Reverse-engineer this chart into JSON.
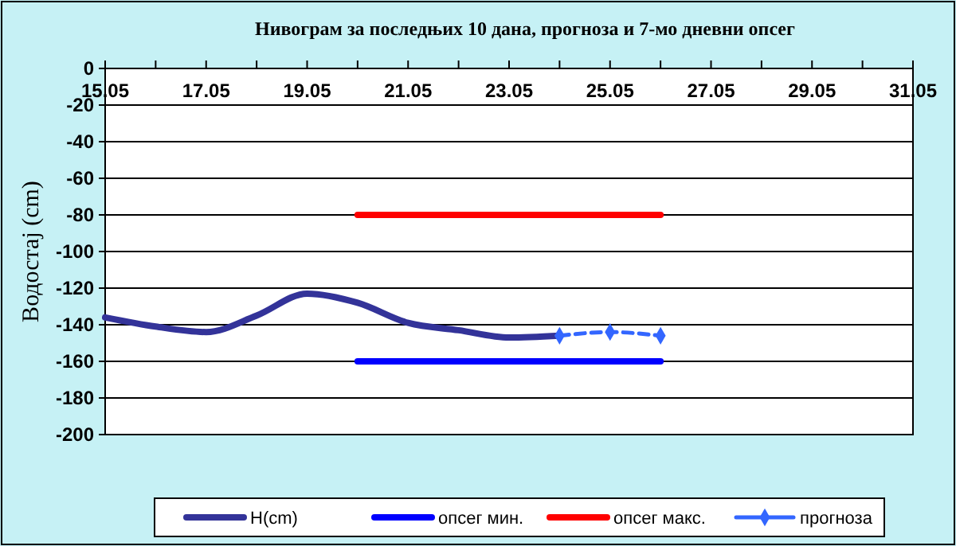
{
  "chart_data": {
    "type": "line",
    "title": "Нивограм за последњих 10 дана, прогноза и 7-мо дневни опсег",
    "ylabel": "Водостај (cm)",
    "xlim": [
      "--05-15",
      "--05-31"
    ],
    "xticks": [
      {
        "value": "--05-15",
        "label": "15.05"
      },
      {
        "value": "--05-16",
        "label": null
      },
      {
        "value": "--05-17",
        "label": "17.05"
      },
      {
        "value": "--05-18",
        "label": null
      },
      {
        "value": "--05-19",
        "label": "19.05"
      },
      {
        "value": "--05-20",
        "label": null
      },
      {
        "value": "--05-21",
        "label": "21.05"
      },
      {
        "value": "--05-22",
        "label": null
      },
      {
        "value": "--05-23",
        "label": "23.05"
      },
      {
        "value": "--05-24",
        "label": null
      },
      {
        "value": "--05-25",
        "label": "25.05"
      },
      {
        "value": "--05-26",
        "label": null
      },
      {
        "value": "--05-27",
        "label": "27.05"
      },
      {
        "value": "--05-28",
        "label": null
      },
      {
        "value": "--05-29",
        "label": "29.05"
      },
      {
        "value": "--05-30",
        "label": null
      },
      {
        "value": "--05-31",
        "label": "31.05"
      }
    ],
    "ylim": [
      -200,
      0
    ],
    "yticks": [
      0,
      -20,
      -40,
      -60,
      -80,
      -100,
      -120,
      -140,
      -160,
      -180,
      -200
    ],
    "grid": "y",
    "legend": "bottom",
    "series": [
      {
        "name": "H(cm)",
        "color": "#333399",
        "x": [
          "--05-15",
          "--05-16",
          "--05-17",
          "--05-18",
          "--05-19",
          "--05-20",
          "--05-21",
          "--05-22",
          "--05-23",
          "--05-24"
        ],
        "values": [
          -136,
          -141,
          -144,
          -135,
          -123,
          -128,
          -139,
          -143,
          -147,
          -146
        ]
      },
      {
        "name": "опсег мин.",
        "color": "#0000ff",
        "x": [
          "--05-20",
          "--05-21",
          "--05-22",
          "--05-23",
          "--05-24",
          "--05-25",
          "--05-26"
        ],
        "values": [
          -160,
          -160,
          -160,
          -160,
          -160,
          -160,
          -160
        ]
      },
      {
        "name": "опсег макс.",
        "color": "#ff0000",
        "x": [
          "--05-20",
          "--05-21",
          "--05-22",
          "--05-23",
          "--05-24",
          "--05-25",
          "--05-26"
        ],
        "values": [
          -80,
          -80,
          -80,
          -80,
          -80,
          -80,
          -80
        ]
      },
      {
        "name": "прогноза",
        "color": "#3366ff",
        "marker": "diamond",
        "line_style": "dashed",
        "x": [
          "--05-24",
          "--05-25",
          "--05-26"
        ],
        "values": [
          -146,
          -144,
          -146
        ]
      }
    ]
  }
}
